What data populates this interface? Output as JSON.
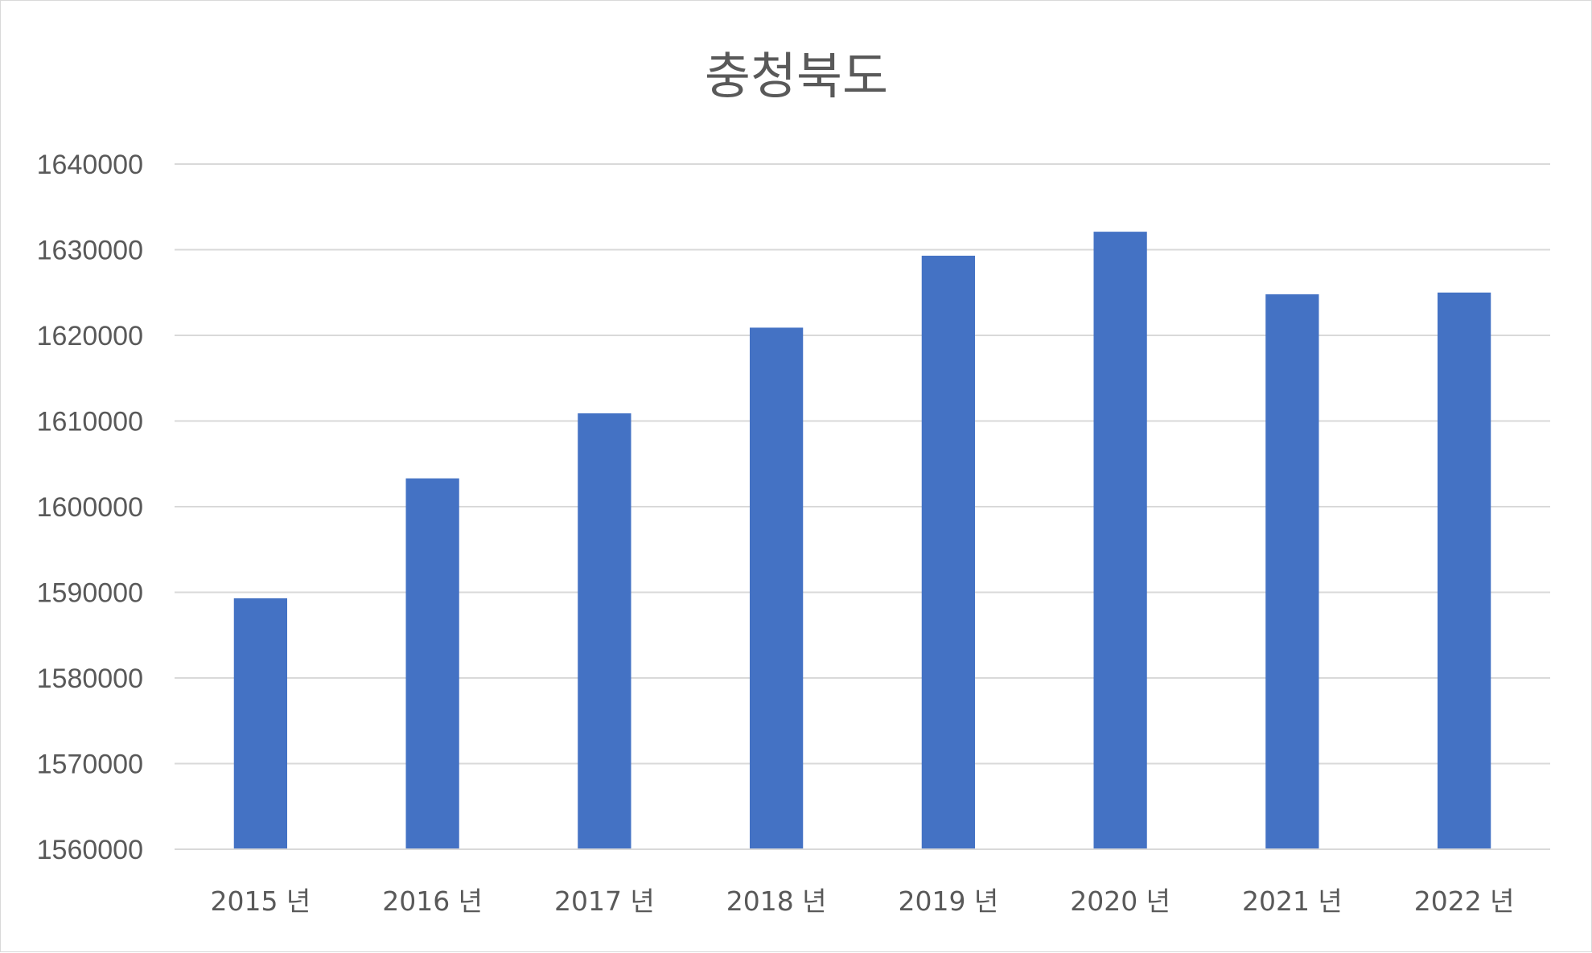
{
  "chart_data": {
    "type": "bar",
    "title": "충청북도",
    "categories": [
      "2015 년",
      "2016 년",
      "2017 년",
      "2018 년",
      "2019 년",
      "2020 년",
      "2021 년",
      "2022 년"
    ],
    "values": [
      1589300,
      1603300,
      1610900,
      1620900,
      1629300,
      1632100,
      1624800,
      1625000
    ],
    "ylim": [
      1560000,
      1640000
    ],
    "yticks": [
      1560000,
      1570000,
      1580000,
      1590000,
      1600000,
      1610000,
      1620000,
      1630000,
      1640000
    ],
    "ytick_labels": [
      "1560000",
      "1570000",
      "1580000",
      "1590000",
      "1600000",
      "1610000",
      "1620000",
      "1630000",
      "1640000"
    ],
    "grid": true,
    "legend": "none",
    "bar_color": "#4472c4"
  }
}
